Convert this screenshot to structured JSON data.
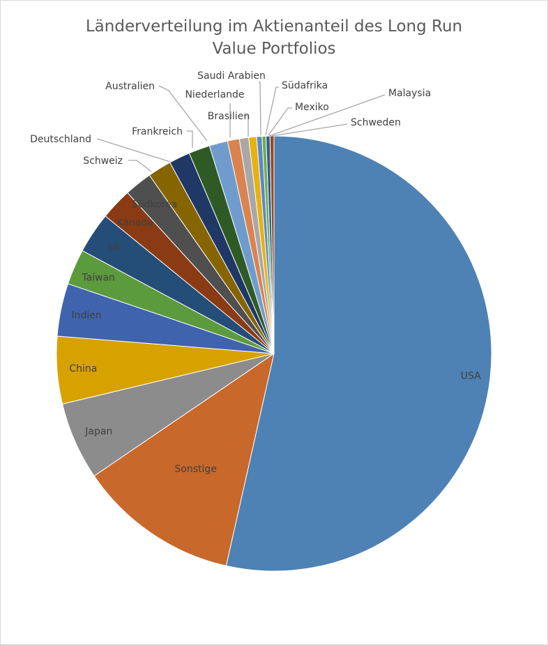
{
  "chart_data": {
    "type": "pie",
    "title_line1": "Länderverteilung im Aktienanteil des Long Run",
    "title_line2": "Value Portfolios",
    "slices": [
      {
        "label": "USA",
        "value": 54.6,
        "color": "#4e81b4"
      },
      {
        "label": "Sonstige",
        "value": 12.2,
        "color": "#c8682b"
      },
      {
        "label": "Japan",
        "value": 5.9,
        "color": "#8c8c8c"
      },
      {
        "label": "China",
        "value": 5.1,
        "color": "#d7a200"
      },
      {
        "label": "Indien",
        "value": 4.0,
        "color": "#3f63ad"
      },
      {
        "label": "Taiwan",
        "value": 2.7,
        "color": "#5c9a3e"
      },
      {
        "label": "UK",
        "value": 3.1,
        "color": "#244d78"
      },
      {
        "label": "Kanada",
        "value": 2.4,
        "color": "#8a3b14"
      },
      {
        "label": "Südkorea",
        "value": 2.1,
        "color": "#4f4f4f"
      },
      {
        "label": "Schweiz",
        "value": 1.8,
        "color": "#866400"
      },
      {
        "label": "Deutschland",
        "value": 1.6,
        "color": "#1f3866"
      },
      {
        "label": "Frankreich",
        "value": 1.6,
        "color": "#2f5a26"
      },
      {
        "label": "Australien",
        "value": 1.4,
        "color": "#6f9ccd"
      },
      {
        "label": "Niederlande",
        "value": 0.9,
        "color": "#d98450"
      },
      {
        "label": "Brasilien",
        "value": 0.7,
        "color": "#a8a8a8"
      },
      {
        "label": "Saudi Arabien",
        "value": 0.6,
        "color": "#e6b112"
      },
      {
        "label": "Südafrika",
        "value": 0.4,
        "color": "#5b88c8"
      },
      {
        "label": "Mexiko",
        "value": 0.3,
        "color": "#6fae4a"
      },
      {
        "label": "Malaysia",
        "value": 0.3,
        "color": "#2f5f96"
      },
      {
        "label": "Schweden",
        "value": 0.3,
        "color": "#9c4a1c"
      }
    ],
    "legend": "none"
  }
}
